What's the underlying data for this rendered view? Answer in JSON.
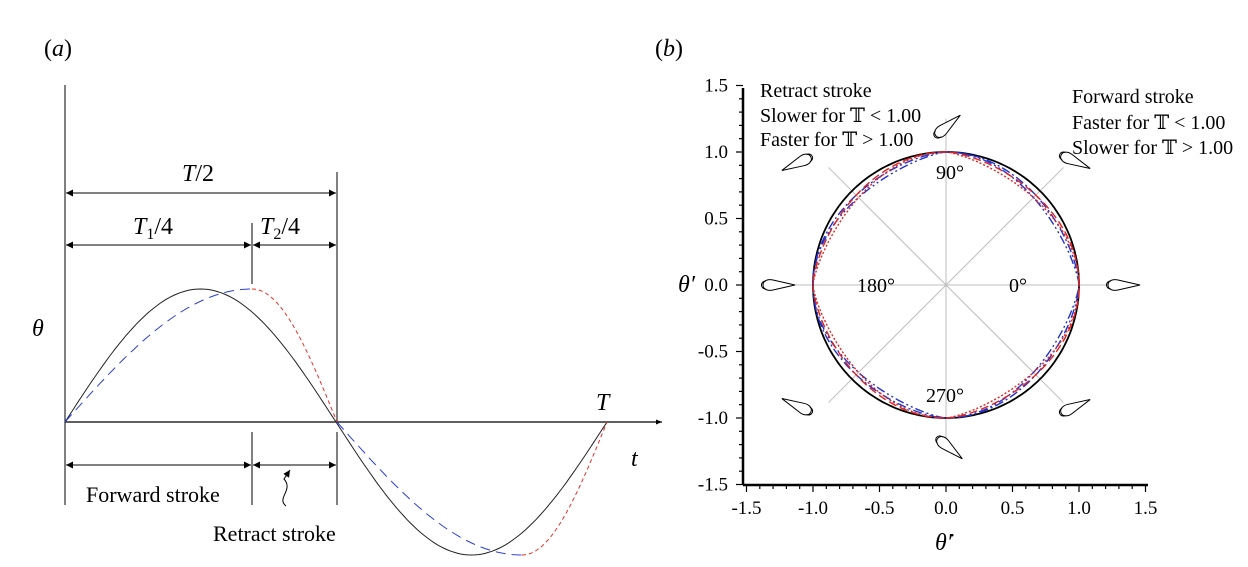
{
  "panel_a": {
    "label_open": "(",
    "label_letter": "a",
    "label_close": ")",
    "theta_label": "θ",
    "t_label": "t",
    "T_label": "T",
    "half_period_label": {
      "sym": "T",
      "rest": "/2"
    },
    "t1_label": {
      "sym": "T",
      "sub": "1",
      "rest": "/4"
    },
    "t2_label": {
      "sym": "T",
      "sub": "2",
      "rest": "/4"
    },
    "forward_stroke": "Forward stroke",
    "retract_stroke": "Retract stroke",
    "curve_colors": {
      "sinusoid": "#000000",
      "skewed_forward": "#2b3fd6",
      "skewed_retract": "#e8302a"
    }
  },
  "panel_b": {
    "label_open": "(",
    "label_letter": "b",
    "label_close": ")",
    "retract_note": [
      "Retract stroke",
      "Slower for 𝕋 < 1.00",
      "Faster for 𝕋 > 1.00"
    ],
    "forward_note": [
      "Forward stroke",
      "Faster for 𝕋 < 1.00",
      "Slower for 𝕋 > 1.00"
    ],
    "angle_labels": {
      "deg0": "0°",
      "deg90": "90°",
      "deg180": "180°",
      "deg270": "270°"
    },
    "y_label": "θ′",
    "x_label": "θ̇′",
    "series_colors": {
      "circle": "#000000",
      "blue": "#2233cc",
      "red": "#e0241f"
    }
  },
  "chart_data": {
    "type": "line",
    "xlabel": "θ̇′",
    "ylabel": "θ′",
    "xlim": [
      -1.5,
      1.5
    ],
    "ylim": [
      -1.5,
      1.5
    ],
    "x_ticks": [
      "-1.5",
      "-1.0",
      "-0.5",
      "0.0",
      "0.5",
      "1.0",
      "1.5"
    ],
    "y_ticks": [
      "1.5",
      "1.0",
      "0.5",
      "0.0",
      "-0.5",
      "-1.0",
      "-1.5"
    ],
    "grid": false,
    "series": [
      {
        "style": "solid",
        "color": "#000000",
        "shape": "unit circle",
        "power": 2
      },
      {
        "style": "dash-dot",
        "color": "#2233cc",
        "power": 1.55,
        "flat_side": "left"
      },
      {
        "style": "dash-dot-dot",
        "color": "#2233cc",
        "power": 1.35,
        "flat_side": "left"
      },
      {
        "style": "dashed",
        "color": "#e0241f",
        "power": 1.55,
        "flat_side": "right"
      },
      {
        "style": "dotted",
        "color": "#e0241f",
        "power": 1.35,
        "flat_side": "right"
      }
    ]
  }
}
